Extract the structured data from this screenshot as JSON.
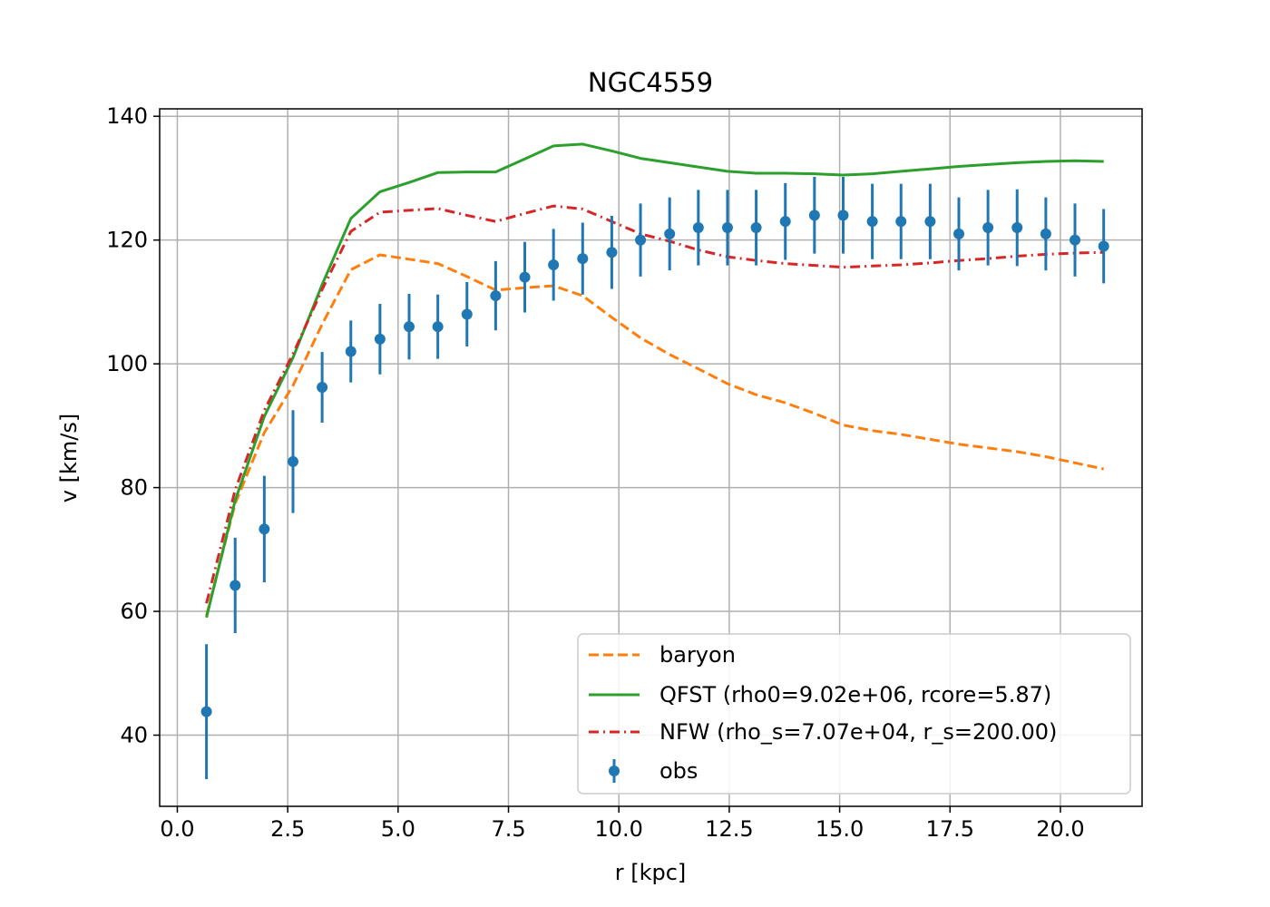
{
  "chart_data": {
    "type": "line",
    "title": "NGC4559",
    "xlabel": "r [kpc]",
    "ylabel": "v [km/s]",
    "xlim": [
      -0.4,
      21.85
    ],
    "ylim": [
      28.5,
      141.2
    ],
    "xticks": [
      0.0,
      2.5,
      5.0,
      7.5,
      10.0,
      12.5,
      15.0,
      17.5,
      20.0
    ],
    "xtick_labels": [
      "0.0",
      "2.5",
      "5.0",
      "7.5",
      "10.0",
      "12.5",
      "15.0",
      "17.5",
      "20.0"
    ],
    "yticks": [
      40,
      60,
      80,
      100,
      120,
      140
    ],
    "ytick_labels": [
      "40",
      "60",
      "80",
      "100",
      "120",
      "140"
    ],
    "grid": true,
    "legend_position": "lower-right",
    "x": [
      0.66,
      1.31,
      1.97,
      2.62,
      3.28,
      3.93,
      4.59,
      5.25,
      5.9,
      6.56,
      7.21,
      7.87,
      8.52,
      9.18,
      9.84,
      10.49,
      11.15,
      11.8,
      12.46,
      13.11,
      13.77,
      14.43,
      15.08,
      15.74,
      16.39,
      17.05,
      17.7,
      18.36,
      19.02,
      19.67,
      20.33,
      20.98
    ],
    "series": [
      {
        "name": "baryon",
        "style": "dashed",
        "color": "#ff7f0e",
        "values": [
          59.3,
          77.4,
          88.9,
          96.5,
          106.4,
          115.2,
          117.6,
          116.9,
          116.2,
          114.1,
          111.9,
          112.3,
          112.6,
          111.0,
          107.5,
          104.2,
          101.5,
          99.2,
          96.8,
          95.0,
          93.7,
          92.0,
          90.1,
          89.2,
          88.6,
          87.8,
          87.0,
          86.4,
          85.8,
          85.0,
          84.0,
          83.0
        ]
      },
      {
        "name": "QFST (rho0=9.02e+06, rcore=5.87)",
        "style": "solid",
        "color": "#2ca02c",
        "values": [
          59.0,
          77.9,
          91.5,
          101.0,
          112.8,
          123.5,
          127.8,
          129.3,
          130.9,
          131.0,
          131.0,
          133.1,
          135.2,
          135.5,
          134.4,
          133.2,
          132.5,
          131.8,
          131.1,
          130.8,
          130.8,
          130.7,
          130.5,
          130.7,
          131.1,
          131.5,
          131.9,
          132.2,
          132.5,
          132.7,
          132.8,
          132.7
        ]
      },
      {
        "name": "NFW (rho_s=7.07e+04, r_s=200.00)",
        "style": "dashdot",
        "color": "#d62728",
        "values": [
          61.3,
          79.6,
          92.5,
          101.6,
          112.0,
          121.4,
          124.5,
          124.8,
          125.1,
          124.0,
          123.0,
          124.3,
          125.5,
          125.0,
          123.0,
          121.0,
          119.8,
          118.4,
          117.3,
          116.7,
          116.2,
          115.9,
          115.6,
          115.8,
          116.0,
          116.3,
          116.7,
          117.0,
          117.4,
          117.7,
          117.9,
          118.0
        ]
      }
    ],
    "observed": {
      "name": "obs",
      "color": "#1f77b4",
      "values": [
        43.8,
        64.2,
        73.3,
        84.2,
        96.2,
        102.0,
        104.0,
        106.0,
        106.0,
        108.0,
        111.0,
        114.0,
        116.0,
        117.0,
        118.0,
        120.0,
        121.0,
        122.0,
        122.0,
        122.0,
        123.0,
        124.0,
        124.0,
        123.0,
        123.0,
        123.0,
        121.0,
        122.0,
        122.0,
        121.0,
        120.0,
        119.0
      ],
      "errors": [
        10.9,
        7.7,
        8.6,
        8.3,
        5.7,
        5.0,
        5.7,
        5.3,
        5.2,
        5.2,
        5.6,
        5.7,
        5.8,
        5.8,
        5.9,
        5.9,
        5.9,
        6.1,
        6.1,
        6.1,
        6.2,
        6.2,
        6.2,
        6.1,
        6.1,
        6.1,
        5.9,
        6.1,
        6.2,
        5.9,
        5.9,
        6.0
      ]
    }
  }
}
